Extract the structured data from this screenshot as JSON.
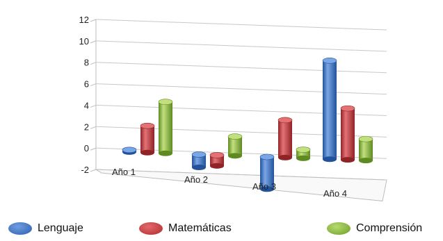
{
  "chart_data": {
    "type": "bar",
    "categories": [
      "Año 1",
      "Año 2",
      "Año 3",
      "Año 4"
    ],
    "series": [
      {
        "name": "Lenguaje",
        "values": [
          0.2,
          -1.2,
          -3,
          9.2
        ]
      },
      {
        "name": "Matemáticas",
        "values": [
          2.5,
          -1,
          3.5,
          4.8
        ]
      },
      {
        "name": "Comprensión",
        "values": [
          4.8,
          1.8,
          0.8,
          2
        ]
      }
    ],
    "ylim": [
      -2,
      12
    ],
    "yticks": [
      -2,
      0,
      2,
      4,
      6,
      8,
      10,
      12
    ],
    "grid": true,
    "legend_position": "bottom",
    "colors": {
      "Lenguaje": "#3a72c4",
      "Matemáticas": "#c8383b",
      "Comprensión": "#8cbc3c"
    },
    "title": "",
    "xlabel": "",
    "ylabel": ""
  }
}
